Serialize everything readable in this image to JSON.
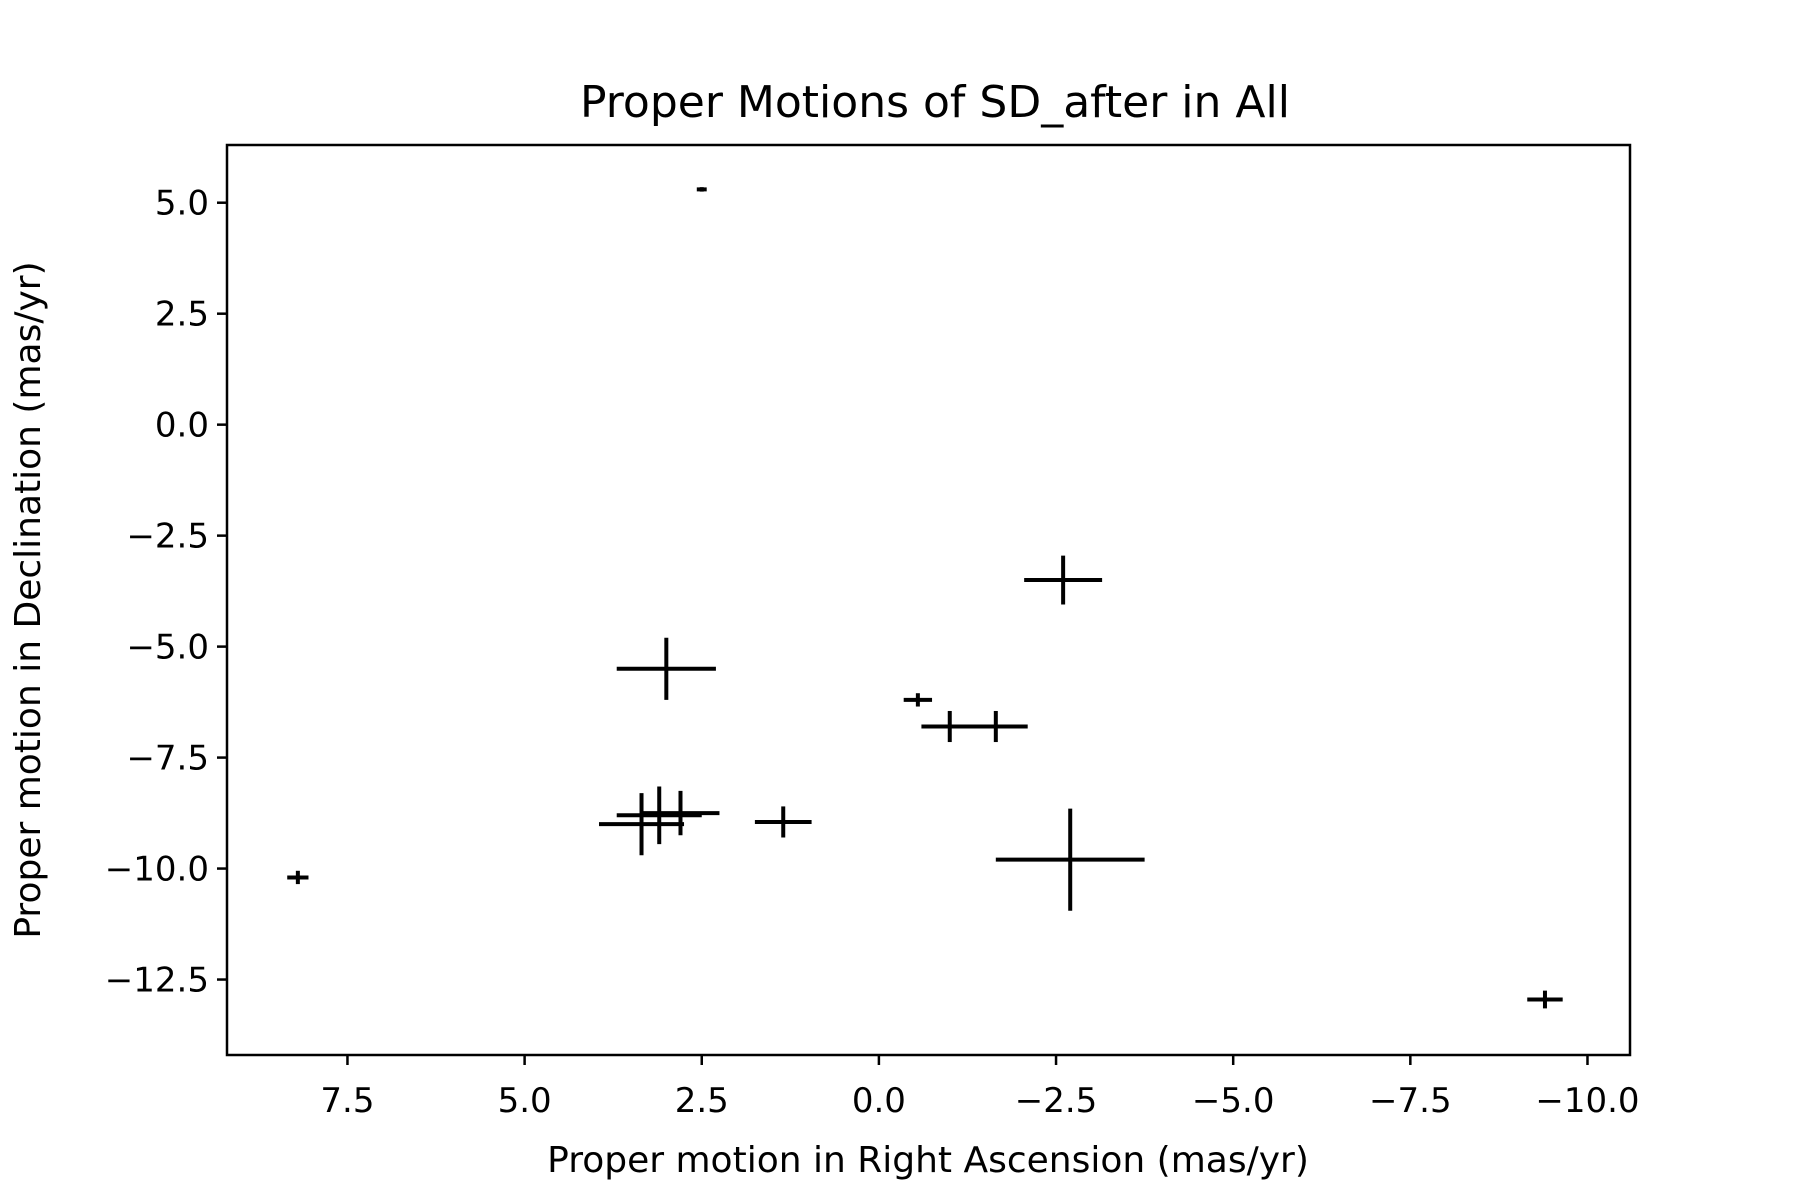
{
  "chart_data": {
    "type": "scatter",
    "title": "Proper Motions of SD_after in All",
    "xlabel": "Proper motion in Right Ascension (mas/yr)",
    "ylabel": "Proper motion in Declination (mas/yr)",
    "xlim": [
      9.2,
      -10.6
    ],
    "ylim": [
      -14.2,
      6.3
    ],
    "x_inverted": true,
    "grid": false,
    "legend": "none",
    "marker": "errorbar-cross",
    "color": "#000000",
    "x_ticks": [
      7.5,
      5.0,
      2.5,
      0.0,
      -2.5,
      -5.0,
      -7.5,
      -10.0
    ],
    "x_tick_labels": [
      "7.5",
      "5.0",
      "2.5",
      "0.0",
      "−2.5",
      "−5.0",
      "−7.5",
      "−10.0"
    ],
    "y_ticks": [
      5.0,
      2.5,
      0.0,
      -2.5,
      -5.0,
      -7.5,
      -10.0,
      -12.5
    ],
    "y_tick_labels": [
      "5.0",
      "2.5",
      "0.0",
      "−2.5",
      "−5.0",
      "−7.5",
      "−10.0",
      "−12.5"
    ],
    "points": [
      {
        "x": 2.5,
        "y": 5.3,
        "xerr": 0.07,
        "yerr": 0.05
      },
      {
        "x": 8.2,
        "y": -10.2,
        "xerr": 0.15,
        "yerr": 0.15
      },
      {
        "x": 3.0,
        "y": -5.5,
        "xerr": 0.7,
        "yerr": 0.7
      },
      {
        "x": -2.6,
        "y": -3.5,
        "xerr": 0.55,
        "yerr": 0.55
      },
      {
        "x": -0.55,
        "y": -6.2,
        "xerr": 0.2,
        "yerr": 0.15
      },
      {
        "x": -1.0,
        "y": -6.8,
        "xerr": 0.4,
        "yerr": 0.35
      },
      {
        "x": -1.65,
        "y": -6.8,
        "xerr": 0.45,
        "yerr": 0.35
      },
      {
        "x": 3.35,
        "y": -9.0,
        "xerr": 0.6,
        "yerr": 0.7
      },
      {
        "x": 3.1,
        "y": -8.8,
        "xerr": 0.6,
        "yerr": 0.65
      },
      {
        "x": 2.8,
        "y": -8.75,
        "xerr": 0.55,
        "yerr": 0.5
      },
      {
        "x": 1.35,
        "y": -8.95,
        "xerr": 0.4,
        "yerr": 0.35
      },
      {
        "x": -2.7,
        "y": -9.8,
        "xerr": 1.05,
        "yerr": 1.15
      },
      {
        "x": -9.4,
        "y": -12.95,
        "xerr": 0.25,
        "yerr": 0.2
      }
    ]
  }
}
